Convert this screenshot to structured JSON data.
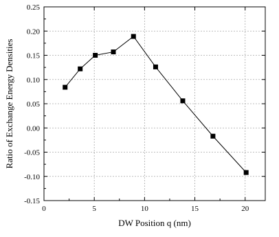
{
  "chart_data": {
    "type": "line",
    "xlabel": "DW Position q (nm)",
    "ylabel": "Ratio of Exchange Energy Densities",
    "xlim": [
      0,
      22
    ],
    "ylim": [
      -0.15,
      0.25
    ],
    "xticks": [
      0,
      5,
      10,
      15,
      20
    ],
    "xtick_labels": [
      "0",
      "5",
      "10",
      "15",
      "20"
    ],
    "yticks": [
      -0.15,
      -0.1,
      -0.05,
      0.0,
      0.05,
      0.1,
      0.15,
      0.2,
      0.25
    ],
    "ytick_labels": [
      "-0.15",
      "-0.10",
      "-0.05",
      "0.00",
      "0.05",
      "0.10",
      "0.15",
      "0.20",
      "0.25"
    ],
    "grid": true,
    "marker": "square",
    "color": "#000000",
    "series": [
      {
        "x": [
          2.1,
          3.6,
          5.1,
          6.9,
          8.9,
          11.1,
          13.8,
          16.8,
          20.1
        ],
        "y": [
          0.084,
          0.122,
          0.15,
          0.157,
          0.189,
          0.126,
          0.056,
          -0.017,
          -0.092
        ]
      }
    ]
  }
}
